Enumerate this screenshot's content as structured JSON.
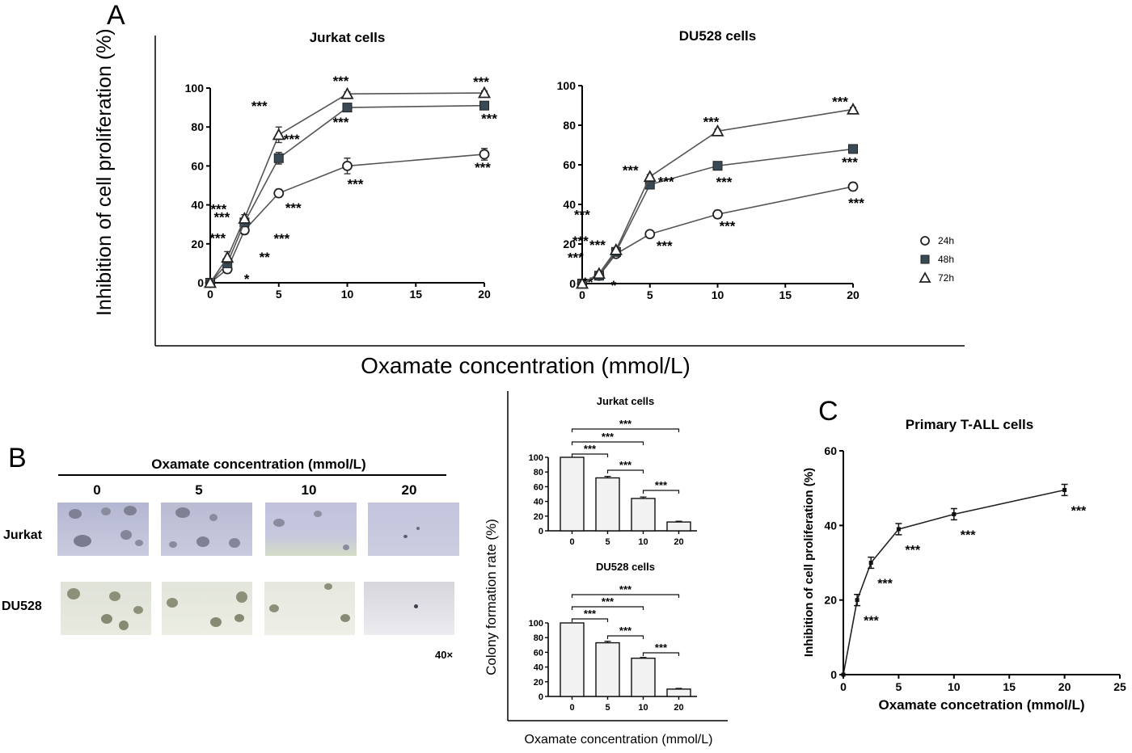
{
  "panels": {
    "A": {
      "letter": "A",
      "ylabel": "Inhibition of cell proliferation (%)",
      "xlabel": "Oxamate concentration (mmol/L)"
    },
    "B": {
      "letter": "B",
      "header": "Oxamate concentration (mmol/L)",
      "concentrations": [
        "0",
        "5",
        "10",
        "20"
      ],
      "rows": [
        "Jurkat",
        "DU528"
      ],
      "magnification": "40×",
      "bar_ylabel": "Colony formation rate (%)",
      "bar_xlabel": "Oxamate concentration (mmol/L)"
    },
    "C": {
      "letter": "C"
    }
  },
  "colors": {
    "line": "#555555",
    "marker_fill": "#3a4a55",
    "axis": "#000000",
    "bar_fill": "#f2f2f2"
  },
  "chart_data": [
    {
      "id": "A_jurkat",
      "type": "line",
      "title": "Jurkat cells",
      "xlim": [
        0,
        20
      ],
      "ylim": [
        0,
        100
      ],
      "xticks": [
        "0",
        "5",
        "10",
        "15",
        "20"
      ],
      "yticks": [
        "0",
        "20",
        "40",
        "60",
        "80",
        "100"
      ],
      "x": [
        0,
        1.25,
        2.5,
        5,
        10,
        20
      ],
      "series": [
        {
          "name": "24h",
          "marker": "circle",
          "values": [
            0,
            7,
            27,
            46,
            60,
            66
          ],
          "errors": [
            0,
            2,
            2,
            2,
            4,
            3
          ],
          "labels": [
            "",
            "*",
            "***",
            "***",
            "***",
            "***"
          ]
        },
        {
          "name": "48h",
          "marker": "square",
          "values": [
            0,
            10,
            31,
            64,
            90,
            91
          ],
          "errors": [
            0,
            2,
            2,
            3,
            2,
            2
          ],
          "labels": [
            "",
            "**",
            "***",
            "***",
            "***",
            "***"
          ]
        },
        {
          "name": "72h",
          "marker": "triangle",
          "values": [
            0,
            13,
            33,
            76,
            97,
            97.5
          ],
          "errors": [
            0,
            3,
            2,
            4,
            1,
            1
          ],
          "labels": [
            "",
            "***",
            "***",
            "***",
            "***",
            "***"
          ]
        }
      ]
    },
    {
      "id": "A_du528",
      "type": "line",
      "title": "DU528 cells",
      "xlim": [
        0,
        20
      ],
      "ylim": [
        0,
        100
      ],
      "xticks": [
        "0",
        "5",
        "10",
        "15",
        "20"
      ],
      "yticks": [
        "0",
        "20",
        "40",
        "60",
        "80",
        "100"
      ],
      "x": [
        0,
        1.25,
        2.5,
        5,
        10,
        20
      ],
      "legend": {
        "placement": "right",
        "entries": [
          "24h",
          "48h",
          "72h"
        ]
      },
      "series": [
        {
          "name": "24h",
          "marker": "circle",
          "values": [
            0,
            4,
            15,
            25,
            35,
            49
          ],
          "errors": [
            0,
            1,
            1,
            1,
            2,
            2
          ],
          "labels": [
            "",
            "*",
            "***",
            "***",
            "***",
            "***"
          ]
        },
        {
          "name": "48h",
          "marker": "square",
          "values": [
            0,
            4,
            16,
            50,
            59.5,
            68
          ],
          "errors": [
            0,
            1,
            1,
            1,
            1.5,
            1
          ],
          "labels": [
            "",
            "**",
            "***",
            "***",
            "***",
            "***"
          ]
        },
        {
          "name": "72h",
          "marker": "triangle",
          "values": [
            0,
            5,
            17,
            54,
            77,
            88
          ],
          "errors": [
            0,
            1,
            1,
            1,
            1,
            1
          ],
          "labels": [
            "",
            "***",
            "***",
            "***",
            "***",
            "***"
          ]
        }
      ]
    },
    {
      "id": "B_jurkat",
      "type": "bar",
      "title": "Jurkat cells",
      "categories": [
        "0",
        "5",
        "10",
        "20"
      ],
      "values": [
        100,
        72,
        44,
        12
      ],
      "errors": [
        0,
        2,
        2,
        1
      ],
      "ylim": [
        0,
        100
      ],
      "yticks": [
        "0",
        "20",
        "40",
        "60",
        "80",
        "100"
      ],
      "brackets": [
        {
          "from": 0,
          "to": 3,
          "label": "***"
        },
        {
          "from": 0,
          "to": 2,
          "label": "***"
        },
        {
          "from": 0,
          "to": 1,
          "label": "***"
        },
        {
          "from": 1,
          "to": 2,
          "label": "***"
        },
        {
          "from": 2,
          "to": 3,
          "label": "***"
        }
      ]
    },
    {
      "id": "B_du528",
      "type": "bar",
      "title": "DU528 cells",
      "categories": [
        "0",
        "5",
        "10",
        "20"
      ],
      "values": [
        100,
        73,
        52,
        10
      ],
      "errors": [
        0,
        2,
        1,
        1
      ],
      "ylim": [
        0,
        100
      ],
      "yticks": [
        "0",
        "20",
        "40",
        "60",
        "80",
        "100"
      ],
      "brackets": [
        {
          "from": 0,
          "to": 3,
          "label": "***"
        },
        {
          "from": 0,
          "to": 2,
          "label": "***"
        },
        {
          "from": 0,
          "to": 1,
          "label": "***"
        },
        {
          "from": 1,
          "to": 2,
          "label": "***"
        },
        {
          "from": 2,
          "to": 3,
          "label": "***"
        }
      ]
    },
    {
      "id": "C_primary",
      "type": "line",
      "title": "Primary T-ALL cells",
      "xlabel": "Oxamate concetration (mmol/L)",
      "ylabel": "Inhibition of cell proliferation (%)",
      "xlim": [
        0,
        25
      ],
      "ylim": [
        0,
        60
      ],
      "xticks": [
        "0",
        "5",
        "10",
        "15",
        "20",
        "25"
      ],
      "yticks": [
        "0",
        "20",
        "40",
        "60"
      ],
      "x": [
        0,
        1.25,
        2.5,
        5,
        10,
        20
      ],
      "series": [
        {
          "values": [
            0,
            20,
            30,
            39,
            43,
            49.5
          ],
          "errors": [
            0,
            1.5,
            1.5,
            1.5,
            1.5,
            1.5
          ],
          "labels": [
            "",
            "***",
            "***",
            "***",
            "***",
            "***"
          ]
        }
      ]
    }
  ]
}
